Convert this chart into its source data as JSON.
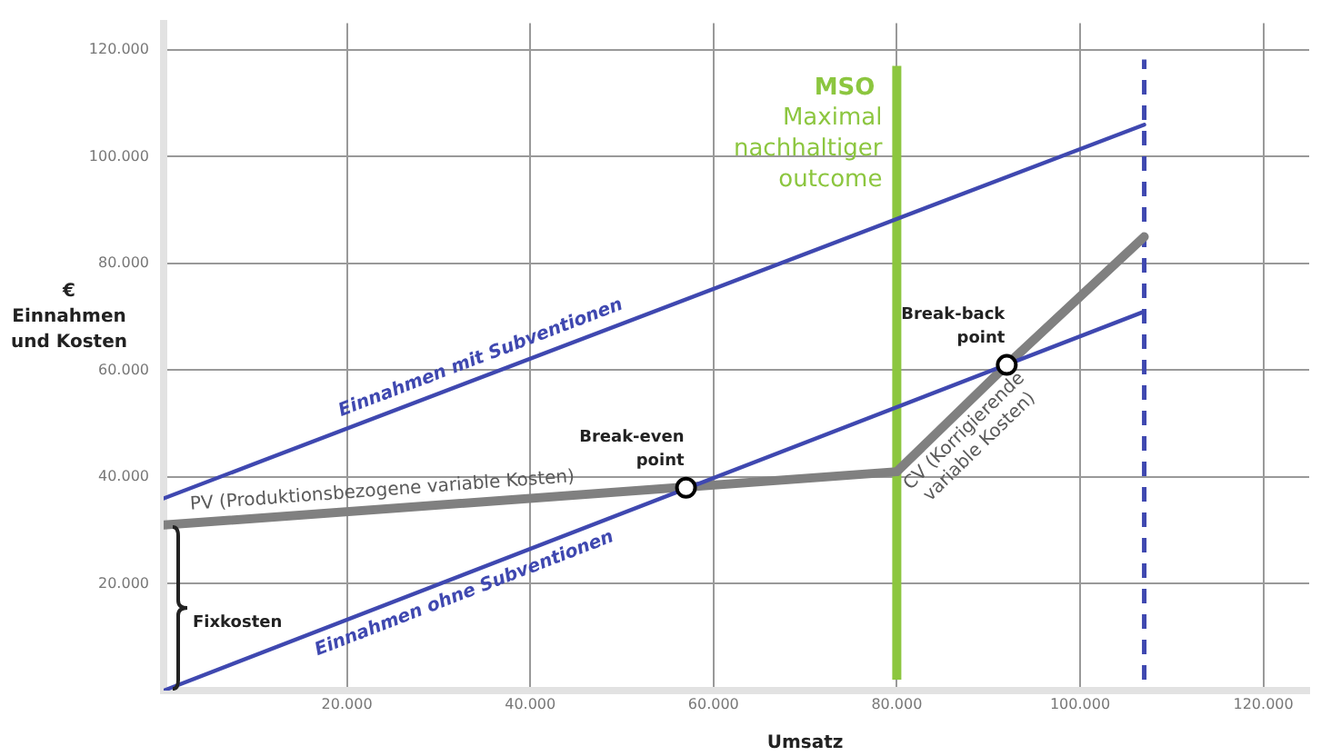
{
  "chart_data": {
    "type": "line",
    "xlabel": "Umsatz",
    "ylabel": "€\nEinnahmen\nund Kosten",
    "xlim": [
      0,
      125000
    ],
    "ylim": [
      0,
      125000
    ],
    "xticks": [
      {
        "value": 20000,
        "label": "20.000"
      },
      {
        "value": 40000,
        "label": "40.000"
      },
      {
        "value": 60000,
        "label": "60.000"
      },
      {
        "value": 80000,
        "label": "80.000"
      },
      {
        "value": 100000,
        "label": "100.000"
      },
      {
        "value": 120000,
        "label": "120.000"
      }
    ],
    "yticks": [
      {
        "value": 20000,
        "label": "20.000"
      },
      {
        "value": 40000,
        "label": "40.000"
      },
      {
        "value": 60000,
        "label": "60.000"
      },
      {
        "value": 80000,
        "label": "80.000"
      },
      {
        "value": 100000,
        "label": "100.000"
      },
      {
        "value": 120000,
        "label": "120.000"
      }
    ],
    "grid": true,
    "legend": false,
    "marker": "none",
    "series": [
      {
        "name": "Einnahmen mit Subventionen",
        "color": "#3f48b0",
        "x": [
          0,
          107000
        ],
        "values": [
          36000,
          106000
        ]
      },
      {
        "name": "Einnahmen ohne Subventionen",
        "color": "#3f48b0",
        "x": [
          0,
          107000
        ],
        "values": [
          0,
          71000
        ]
      },
      {
        "name": "PV (Produktionsbezogene variable Kosten)",
        "color": "#808080",
        "x": [
          0,
          80000
        ],
        "values": [
          31000,
          41000
        ]
      },
      {
        "name": "CV (Korrigierende variable Kosten)",
        "color": "#808080",
        "x": [
          80000,
          92000,
          107000
        ],
        "values": [
          41000,
          61000,
          85000
        ]
      },
      {
        "type": "scatter",
        "marker": "circle",
        "color": "#000000",
        "x": [
          57000,
          92000
        ],
        "values": [
          38000,
          61000
        ]
      }
    ],
    "ref_lines": [
      {
        "axis": "x",
        "value": 80000,
        "label": "MSO",
        "color": "#8cc63f",
        "line_style": "solid"
      },
      {
        "axis": "x",
        "value": 107000,
        "color": "#3f48b0",
        "line_style": "dashed"
      }
    ],
    "annotations": [
      {
        "text": "Break-even point",
        "x": 57000,
        "y": 38000
      },
      {
        "text": "Break-back point",
        "x": 92000,
        "y": 61000
      },
      "Fixkosten",
      {
        "text": "Maximal nachhaltiger outcome",
        "x": 80000,
        "y": 90000
      }
    ]
  }
}
